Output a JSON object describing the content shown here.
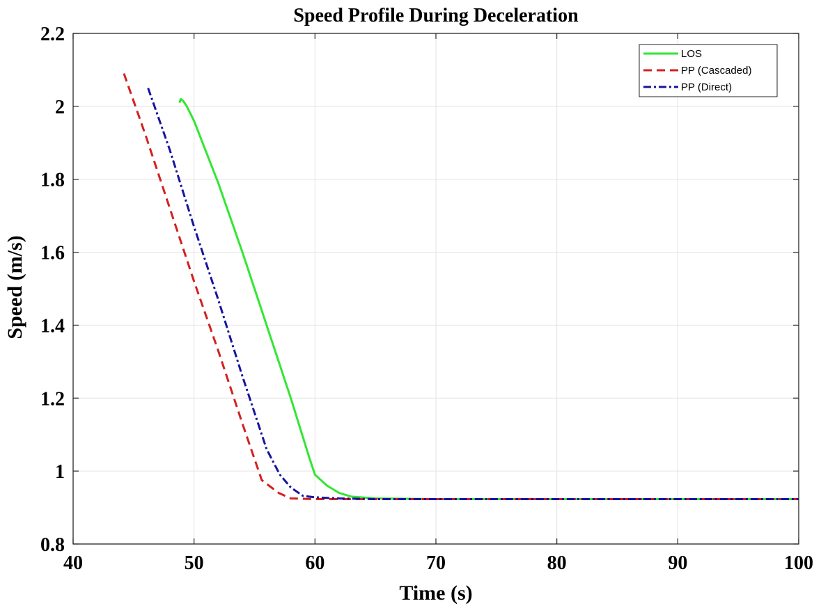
{
  "chart_data": {
    "type": "line",
    "title": "Speed Profile During Deceleration",
    "xlabel": "Time (s)",
    "ylabel": "Speed (m/s)",
    "xlim": [
      40,
      100
    ],
    "ylim": [
      0.8,
      2.2
    ],
    "xticks": [
      40,
      50,
      60,
      70,
      80,
      90,
      100
    ],
    "xtick_labels": [
      "40",
      "50",
      "60",
      "70",
      "80",
      "90",
      "100"
    ],
    "yticks": [
      0.8,
      1.0,
      1.2,
      1.4,
      1.6,
      1.8,
      2.0,
      2.2
    ],
    "ytick_labels": [
      "0.8",
      "1",
      "1.2",
      "1.4",
      "1.6",
      "1.8",
      "2",
      "2.2"
    ],
    "grid": true,
    "legend_position": "top-right",
    "series": [
      {
        "name": "LOS",
        "color": "#33e633",
        "style": "solid",
        "x": [
          48.8,
          48.9,
          49.1,
          49.4,
          50,
          52,
          54,
          56,
          58,
          59.5,
          60,
          61,
          62,
          63,
          65,
          70,
          80,
          90,
          100
        ],
        "y": [
          2.01,
          2.02,
          2.015,
          2.0,
          1.96,
          1.79,
          1.6,
          1.4,
          1.2,
          1.04,
          0.99,
          0.96,
          0.94,
          0.93,
          0.925,
          0.923,
          0.923,
          0.923,
          0.923
        ]
      },
      {
        "name": "PP (Cascaded)",
        "color": "#d42020",
        "style": "dashed",
        "x": [
          44.2,
          46,
          48,
          50,
          52,
          54,
          55.6,
          57,
          58,
          60,
          65,
          70,
          80,
          90,
          100
        ],
        "y": [
          2.09,
          1.92,
          1.72,
          1.52,
          1.33,
          1.13,
          0.975,
          0.94,
          0.925,
          0.923,
          0.923,
          0.923,
          0.923,
          0.923,
          0.923
        ]
      },
      {
        "name": "PP (Direct)",
        "color": "#1515a0",
        "style": "dashdot",
        "x": [
          46.2,
          48,
          50,
          52,
          54,
          56,
          57.1,
          58,
          59,
          60,
          62,
          65,
          70,
          80,
          90,
          100
        ],
        "y": [
          2.05,
          1.88,
          1.67,
          1.47,
          1.26,
          1.06,
          0.99,
          0.955,
          0.932,
          0.928,
          0.925,
          0.923,
          0.923,
          0.923,
          0.923,
          0.923
        ]
      }
    ]
  }
}
